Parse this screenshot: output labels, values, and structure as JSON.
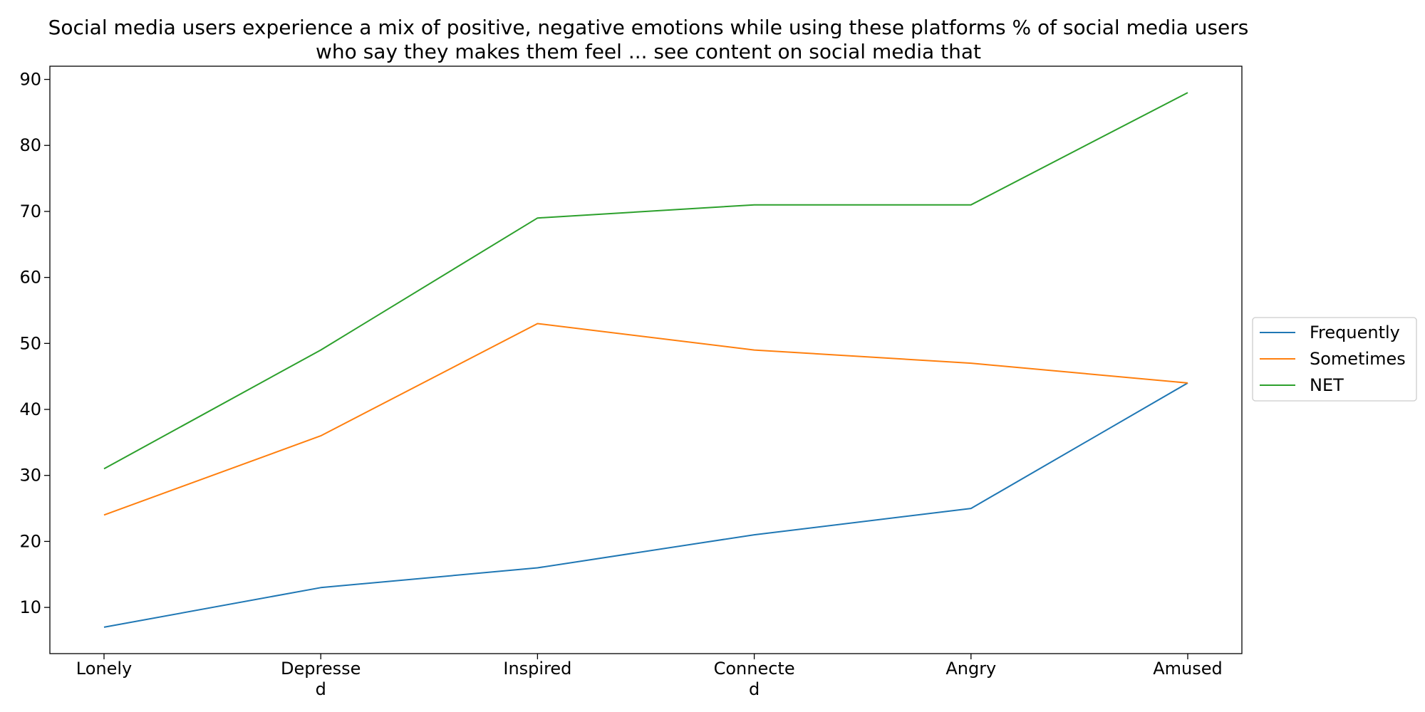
{
  "chart_data": {
    "type": "line",
    "title_lines": [
      "Social media users experience a mix of positive, negative emotions while using these platforms % of social media users",
      "who say they makes them feel ... see content on social media that"
    ],
    "xlabel": "",
    "ylabel": "",
    "categories": [
      "Lonely",
      "Depressed",
      "Inspired",
      "Connected",
      "Angry",
      "Amused"
    ],
    "category_label_lines": [
      [
        "Lonely"
      ],
      [
        "Depresse",
        "d"
      ],
      [
        "Inspired"
      ],
      [
        "Connecte",
        "d"
      ],
      [
        "Angry"
      ],
      [
        "Amused"
      ]
    ],
    "ylim": [
      3,
      92
    ],
    "yticks": [
      10,
      20,
      30,
      40,
      50,
      60,
      70,
      80,
      90
    ],
    "grid": false,
    "legend_position": "right",
    "series": [
      {
        "name": "Frequently",
        "color": "#1f77b4",
        "values": [
          7,
          13,
          16,
          21,
          25,
          44
        ]
      },
      {
        "name": "Sometimes",
        "color": "#ff7f0e",
        "values": [
          24,
          36,
          53,
          49,
          47,
          44
        ]
      },
      {
        "name": "NET",
        "color": "#2ca02c",
        "values": [
          31,
          49,
          69,
          71,
          71,
          88
        ]
      }
    ]
  }
}
